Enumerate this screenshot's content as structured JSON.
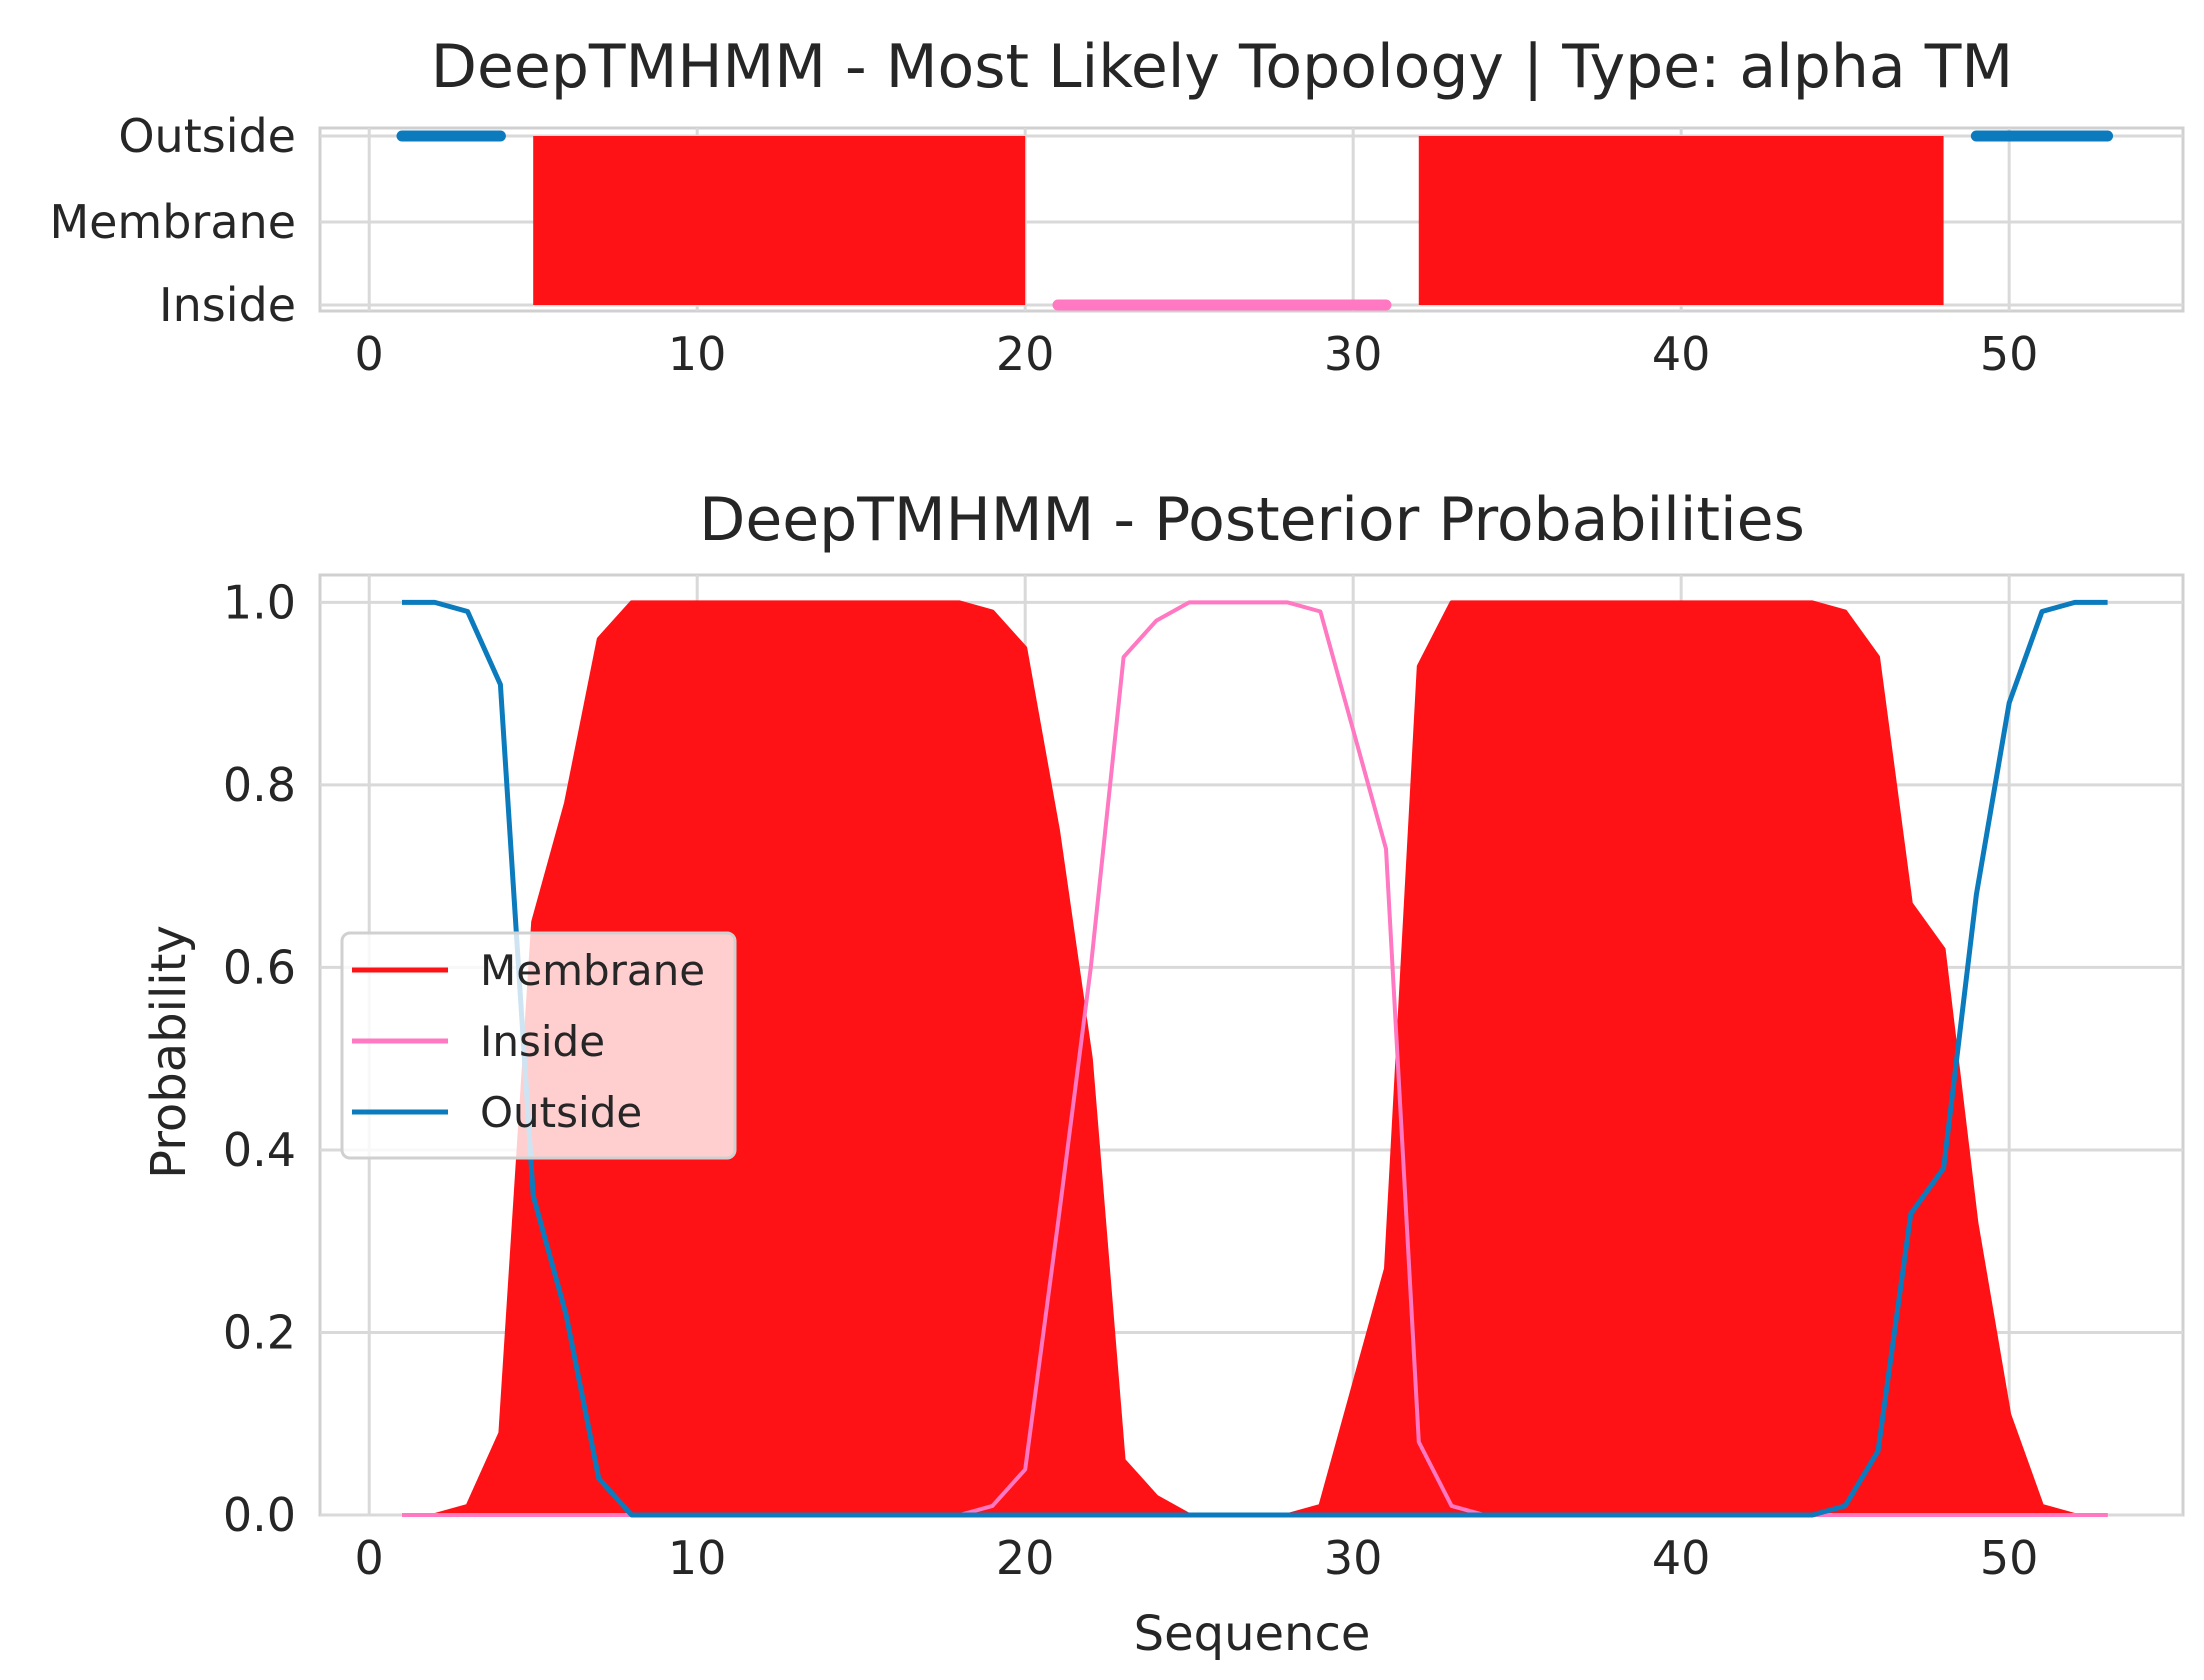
{
  "chart_data": [
    {
      "type": "topology",
      "title": "DeepTMHMM - Most Likely Topology | Type: alpha TM",
      "xlim": [
        -1.5,
        55.3
      ],
      "xticks": [
        0,
        10,
        20,
        30,
        40,
        50
      ],
      "ycategories": [
        "Outside",
        "Membrane",
        "Inside"
      ],
      "grid": true,
      "colors": {
        "Membrane": "#ff1216",
        "Inside": "#ff78c1",
        "Outside": "#0b7bbd"
      },
      "segments": [
        {
          "region": "Outside",
          "start": 1,
          "end": 4
        },
        {
          "region": "Membrane",
          "start": 5,
          "end": 20
        },
        {
          "region": "Inside",
          "start": 21,
          "end": 31
        },
        {
          "region": "Membrane",
          "start": 32,
          "end": 48
        },
        {
          "region": "Outside",
          "start": 49,
          "end": 53
        }
      ]
    },
    {
      "type": "area",
      "title": "DeepTMHMM - Posterior Probabilities",
      "xlabel": "Sequence",
      "ylabel": "Probability",
      "xlim": [
        -1.5,
        55.3
      ],
      "ylim": [
        0,
        1.03
      ],
      "xticks": [
        0,
        10,
        20,
        30,
        40,
        50
      ],
      "yticks": [
        "0.0",
        "0.2",
        "0.4",
        "0.6",
        "0.8",
        "1.0"
      ],
      "grid": true,
      "legend_position": "center-left",
      "x": [
        1,
        2,
        3,
        4,
        5,
        6,
        7,
        8,
        9,
        10,
        11,
        12,
        13,
        14,
        15,
        16,
        17,
        18,
        19,
        20,
        21,
        22,
        23,
        24,
        25,
        26,
        27,
        28,
        29,
        30,
        31,
        32,
        33,
        34,
        35,
        36,
        37,
        38,
        39,
        40,
        41,
        42,
        43,
        44,
        45,
        46,
        47,
        48,
        49,
        50,
        51,
        52,
        53
      ],
      "series": [
        {
          "name": "Membrane",
          "color": "#ff1216",
          "fill": true,
          "values": [
            0,
            0,
            0.01,
            0.09,
            0.65,
            0.78,
            0.96,
            1,
            1,
            1,
            1,
            1,
            1,
            1,
            1,
            1,
            1,
            1,
            0.99,
            0.95,
            0.75,
            0.5,
            0.06,
            0.02,
            0,
            0,
            0,
            0,
            0.01,
            0.14,
            0.27,
            0.93,
            1,
            1,
            1,
            1,
            1,
            1,
            1,
            1,
            1,
            1,
            1,
            1,
            0.99,
            0.94,
            0.67,
            0.62,
            0.32,
            0.11,
            0.01,
            0,
            0
          ]
        },
        {
          "name": "Inside",
          "color": "#ff78c1",
          "fill": false,
          "values": [
            0,
            0,
            0,
            0,
            0,
            0,
            0,
            0,
            0,
            0,
            0,
            0,
            0,
            0,
            0,
            0,
            0,
            0,
            0.01,
            0.05,
            0.32,
            0.6,
            0.94,
            0.98,
            1,
            1,
            1,
            1,
            0.99,
            0.86,
            0.73,
            0.08,
            0.01,
            0,
            0,
            0,
            0,
            0,
            0,
            0,
            0,
            0,
            0,
            0,
            0,
            0,
            0,
            0,
            0,
            0,
            0,
            0,
            0
          ]
        },
        {
          "name": "Outside",
          "color": "#0b7bbd",
          "fill": false,
          "values": [
            1,
            1,
            0.99,
            0.91,
            0.35,
            0.22,
            0.04,
            0,
            0,
            0,
            0,
            0,
            0,
            0,
            0,
            0,
            0,
            0,
            0,
            0,
            0,
            0,
            0,
            0,
            0,
            0,
            0,
            0,
            0,
            0,
            0,
            0,
            0,
            0,
            0,
            0,
            0,
            0,
            0,
            0,
            0,
            0,
            0,
            0,
            0.01,
            0.07,
            0.33,
            0.38,
            0.68,
            0.89,
            0.99,
            1,
            1
          ]
        }
      ]
    }
  ]
}
